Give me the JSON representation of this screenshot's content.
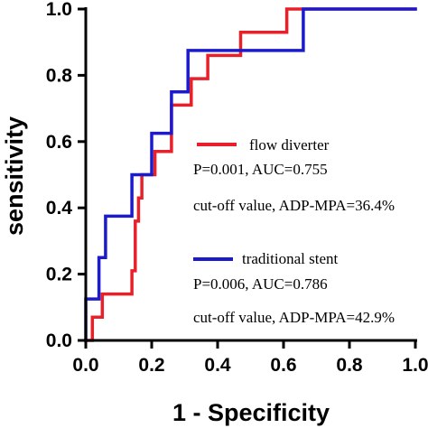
{
  "chart_data": {
    "type": "line",
    "title": "",
    "xlabel": "1 - Specificity",
    "ylabel": "sensitivity",
    "xlim": [
      0,
      1.0
    ],
    "ylim": [
      0,
      1.0
    ],
    "xticks": [
      "0.0",
      "0.2",
      "0.4",
      "0.6",
      "0.8",
      "1.0"
    ],
    "yticks": [
      "0.0",
      "0.2",
      "0.4",
      "0.6",
      "0.8",
      "1.0"
    ],
    "grid": false,
    "legend_position": "center-right",
    "series": [
      {
        "name": "flow diverter",
        "color": "#e8202a",
        "stats": "P=0.001,  AUC=0.755",
        "cutoff": "cut-off value, ADP-MPA=36.4%",
        "points": [
          [
            0.0,
            0.0
          ],
          [
            0.02,
            0.0
          ],
          [
            0.02,
            0.07
          ],
          [
            0.05,
            0.07
          ],
          [
            0.05,
            0.14
          ],
          [
            0.14,
            0.14
          ],
          [
            0.14,
            0.21
          ],
          [
            0.15,
            0.21
          ],
          [
            0.15,
            0.29
          ],
          [
            0.15,
            0.36
          ],
          [
            0.16,
            0.36
          ],
          [
            0.16,
            0.43
          ],
          [
            0.17,
            0.43
          ],
          [
            0.17,
            0.5
          ],
          [
            0.21,
            0.5
          ],
          [
            0.21,
            0.57
          ],
          [
            0.26,
            0.57
          ],
          [
            0.26,
            0.64
          ],
          [
            0.26,
            0.71
          ],
          [
            0.32,
            0.71
          ],
          [
            0.32,
            0.79
          ],
          [
            0.37,
            0.79
          ],
          [
            0.37,
            0.86
          ],
          [
            0.47,
            0.86
          ],
          [
            0.47,
            0.93
          ],
          [
            0.61,
            0.93
          ],
          [
            0.61,
            1.0
          ],
          [
            1.0,
            1.0
          ]
        ]
      },
      {
        "name": "traditional stent",
        "color": "#1b1bcc",
        "stats": "P=0.006,  AUC=0.786",
        "cutoff": "cut-off value, ADP-MPA=42.9%",
        "points": [
          [
            0.0,
            0.0
          ],
          [
            0.0,
            0.125
          ],
          [
            0.04,
            0.125
          ],
          [
            0.04,
            0.25
          ],
          [
            0.06,
            0.25
          ],
          [
            0.06,
            0.375
          ],
          [
            0.14,
            0.375
          ],
          [
            0.14,
            0.5
          ],
          [
            0.2,
            0.5
          ],
          [
            0.2,
            0.625
          ],
          [
            0.26,
            0.625
          ],
          [
            0.26,
            0.75
          ],
          [
            0.31,
            0.75
          ],
          [
            0.31,
            0.875
          ],
          [
            0.66,
            0.875
          ],
          [
            0.66,
            1.0
          ],
          [
            1.0,
            1.0
          ]
        ]
      }
    ]
  }
}
